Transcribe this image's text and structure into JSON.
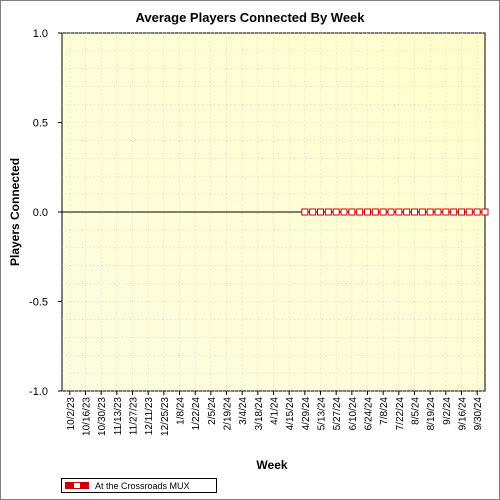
{
  "chart_data": {
    "type": "line",
    "title": "Average Players Connected By Week",
    "xlabel": "Week",
    "ylabel": "Players Connected",
    "ylim": [
      -1.0,
      1.0
    ],
    "yticks": [
      "1.0",
      "0.5",
      "0.0",
      "-0.5",
      "-1.0"
    ],
    "yticks_values": [
      1.0,
      0.5,
      0.0,
      -0.5,
      -1.0
    ],
    "x_tick_labels": [
      "10/2/23",
      "10/16/23",
      "10/30/23",
      "11/13/23",
      "11/27/23",
      "12/11/23",
      "12/25/23",
      "1/8/24",
      "1/22/24",
      "2/5/24",
      "2/19/24",
      "3/4/24",
      "3/18/24",
      "4/1/24",
      "4/15/24",
      "4/29/24",
      "5/13/24",
      "5/27/24",
      "6/10/24",
      "6/24/24",
      "7/8/24",
      "7/22/24",
      "8/5/24",
      "8/19/24",
      "9/2/24",
      "9/16/24",
      "9/30/24"
    ],
    "x_range": [
      "9/25/23",
      "10/7/24"
    ],
    "grid": true,
    "legend_position": "bottom-left",
    "series": [
      {
        "name": "At the Crossroads MUX",
        "color": "#cc0000",
        "x": [
          "4/29/24",
          "5/6/24",
          "5/13/24",
          "5/20/24",
          "5/27/24",
          "6/3/24",
          "6/10/24",
          "6/17/24",
          "6/24/24",
          "7/1/24",
          "7/8/24",
          "7/15/24",
          "7/22/24",
          "7/29/24",
          "8/5/24",
          "8/12/24",
          "8/19/24",
          "8/26/24",
          "9/2/24",
          "9/9/24",
          "9/16/24",
          "9/23/24",
          "9/30/24",
          "10/7/24"
        ],
        "values": [
          0,
          0,
          0,
          0,
          0,
          0,
          0,
          0,
          0,
          0,
          0,
          0,
          0,
          0,
          0,
          0,
          0,
          0,
          0,
          0,
          0,
          0,
          0,
          0
        ]
      }
    ]
  }
}
